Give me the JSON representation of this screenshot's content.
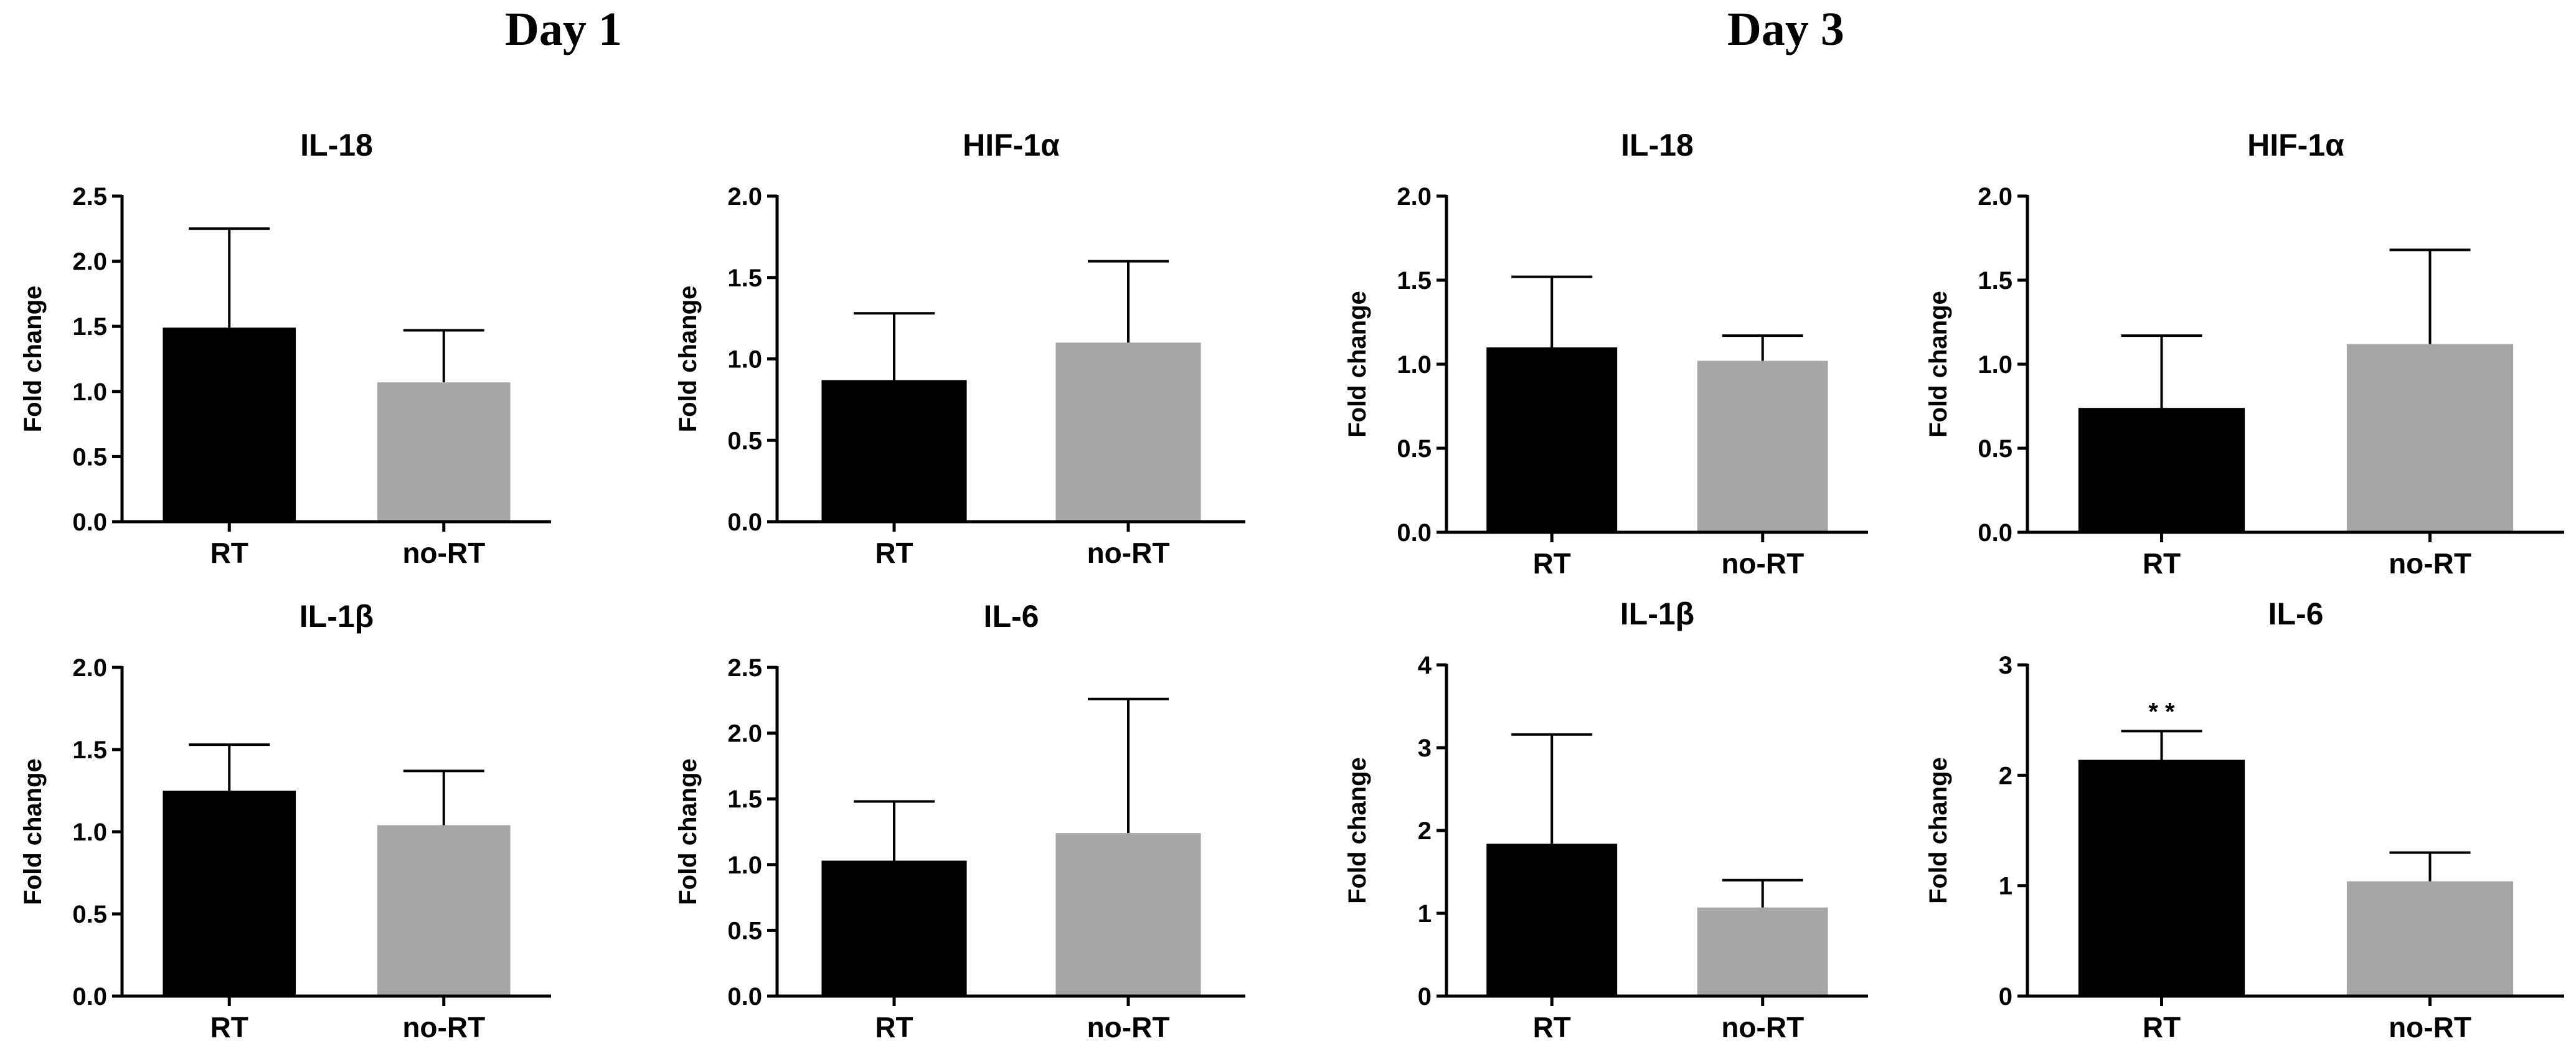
{
  "colors": {
    "RT": "#000000",
    "no-RT": "#a6a6a6"
  },
  "figure": {
    "day_titles": [
      "Day 1",
      "Day 3"
    ]
  },
  "chart_data": [
    {
      "type": "bar",
      "day": "Day 1",
      "title": "IL-18",
      "categories": [
        "RT",
        "no-RT"
      ],
      "values": [
        1.49,
        1.07
      ],
      "errors_upper": [
        2.25,
        1.47
      ],
      "ylim": [
        0,
        2.5
      ],
      "yticks": [
        "0.0",
        "0.5",
        "1.0",
        "1.5",
        "2.0",
        "2.5"
      ],
      "ylabel": "Fold change",
      "annotations": []
    },
    {
      "type": "bar",
      "day": "Day 1",
      "title": "HIF-1α",
      "categories": [
        "RT",
        "no-RT"
      ],
      "values": [
        0.87,
        1.1
      ],
      "errors_upper": [
        1.28,
        1.6
      ],
      "ylim": [
        0,
        2.0
      ],
      "yticks": [
        "0.0",
        "0.5",
        "1.0",
        "1.5",
        "2.0"
      ],
      "ylabel": "Fold change",
      "annotations": []
    },
    {
      "type": "bar",
      "day": "Day 3",
      "title": "IL-18",
      "categories": [
        "RT",
        "no-RT"
      ],
      "values": [
        1.1,
        1.02
      ],
      "errors_upper": [
        1.52,
        1.17
      ],
      "ylim": [
        0,
        2.0
      ],
      "yticks": [
        "0.0",
        "0.5",
        "1.0",
        "1.5",
        "2.0"
      ],
      "ylabel": "Fold change",
      "annotations": []
    },
    {
      "type": "bar",
      "day": "Day 3",
      "title": "HIF-1α",
      "categories": [
        "RT",
        "no-RT"
      ],
      "values": [
        0.74,
        1.12
      ],
      "errors_upper": [
        1.17,
        1.68
      ],
      "ylim": [
        0,
        2.0
      ],
      "yticks": [
        "0.0",
        "0.5",
        "1.0",
        "1.5",
        "2.0"
      ],
      "ylabel": "Fold change",
      "annotations": []
    },
    {
      "type": "bar",
      "day": "Day 1",
      "title": "IL-1β",
      "categories": [
        "RT",
        "no-RT"
      ],
      "values": [
        1.25,
        1.04
      ],
      "errors_upper": [
        1.53,
        1.37
      ],
      "ylim": [
        0,
        2.0
      ],
      "yticks": [
        "0.0",
        "0.5",
        "1.0",
        "1.5",
        "2.0"
      ],
      "ylabel": "Fold change",
      "annotations": []
    },
    {
      "type": "bar",
      "day": "Day 1",
      "title": "IL-6",
      "categories": [
        "RT",
        "no-RT"
      ],
      "values": [
        1.03,
        1.24
      ],
      "errors_upper": [
        1.48,
        2.26
      ],
      "ylim": [
        0,
        2.5
      ],
      "yticks": [
        "0.0",
        "0.5",
        "1.0",
        "1.5",
        "2.0",
        "2.5"
      ],
      "ylabel": "Fold change",
      "annotations": []
    },
    {
      "type": "bar",
      "day": "Day 3",
      "title": "IL-1β",
      "categories": [
        "RT",
        "no-RT"
      ],
      "values": [
        1.84,
        1.07
      ],
      "errors_upper": [
        3.16,
        1.4
      ],
      "ylim": [
        0,
        4
      ],
      "yticks": [
        "0",
        "1",
        "2",
        "3",
        "4"
      ],
      "ylabel": "Fold change",
      "annotations": []
    },
    {
      "type": "bar",
      "day": "Day 3",
      "title": "IL-6",
      "categories": [
        "RT",
        "no-RT"
      ],
      "values": [
        2.14,
        1.04
      ],
      "errors_upper": [
        2.4,
        1.3
      ],
      "ylim": [
        0,
        3
      ],
      "yticks": [
        "0",
        "1",
        "2",
        "3"
      ],
      "ylabel": "Fold change",
      "annotations": [
        {
          "category": "RT",
          "text": "* *"
        }
      ]
    }
  ]
}
